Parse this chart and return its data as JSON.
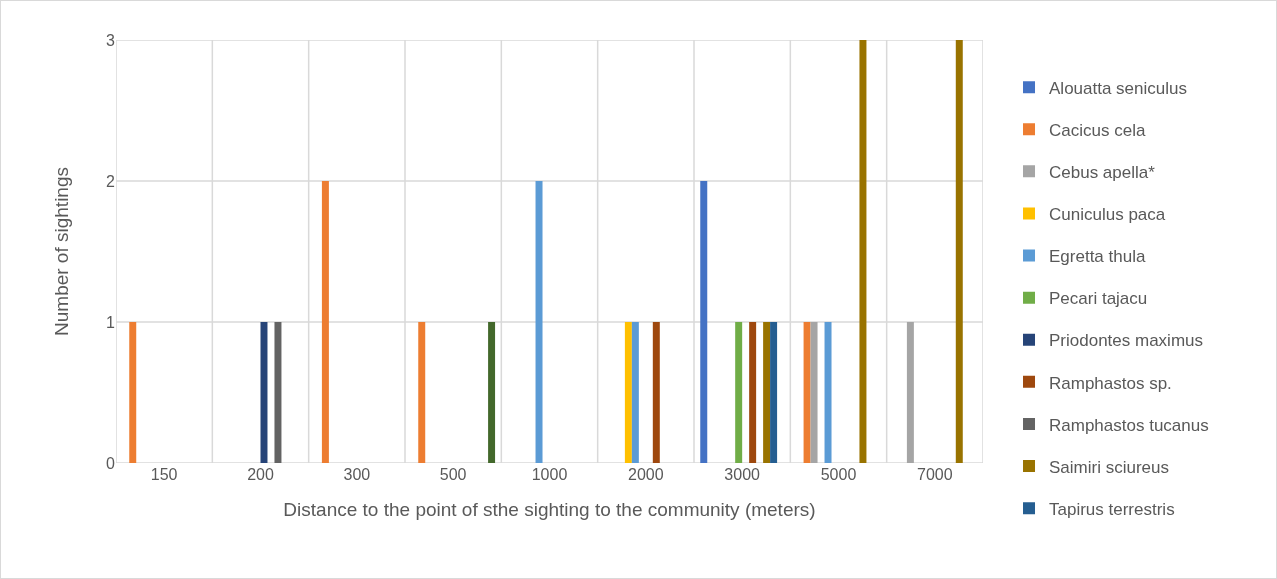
{
  "chart_data": {
    "type": "bar",
    "xlabel": "Distance to the point of sthe sighting to the community (meters)",
    "ylabel": "Number of sightings",
    "categories": [
      "150",
      "200",
      "300",
      "500",
      "1000",
      "2000",
      "3000",
      "5000",
      "7000"
    ],
    "series": [
      {
        "name": "Alouatta seniculus",
        "color": "#4472c4",
        "values": [
          null,
          null,
          null,
          null,
          null,
          null,
          2,
          null,
          null
        ]
      },
      {
        "name": "Cacicus cela",
        "color": "#ed7d31",
        "values": [
          1,
          null,
          2,
          1,
          null,
          null,
          null,
          1,
          null
        ]
      },
      {
        "name": "Cebus apella*",
        "color": "#a5a5a5",
        "values": [
          null,
          null,
          null,
          null,
          null,
          null,
          null,
          1,
          1
        ]
      },
      {
        "name": "Cuniculus paca",
        "color": "#ffc000",
        "values": [
          null,
          null,
          null,
          null,
          null,
          1,
          null,
          null,
          null
        ]
      },
      {
        "name": "Egretta thula",
        "color": "#5b9bd5",
        "values": [
          null,
          null,
          null,
          null,
          2,
          1,
          null,
          1,
          null
        ]
      },
      {
        "name": "Pecari tajacu",
        "color": "#70ad47",
        "values": [
          null,
          null,
          null,
          null,
          null,
          null,
          1,
          null,
          null
        ]
      },
      {
        "name": "Priodontes maximus",
        "color": "#264478",
        "values": [
          null,
          1,
          null,
          null,
          null,
          null,
          null,
          null,
          null
        ]
      },
      {
        "name": "Ramphastos sp.",
        "color": "#9e480e",
        "values": [
          null,
          null,
          null,
          null,
          null,
          1,
          1,
          null,
          null
        ]
      },
      {
        "name": "Ramphastos tucanus",
        "color": "#636363",
        "values": [
          null,
          1,
          null,
          null,
          null,
          null,
          null,
          null,
          null
        ]
      },
      {
        "name": "Saimiri sciureus",
        "color": "#997300",
        "values": [
          null,
          null,
          null,
          null,
          null,
          null,
          1,
          3,
          3
        ]
      },
      {
        "name": "Tapirus terrestris",
        "color": "#255e91",
        "values": [
          null,
          null,
          null,
          null,
          null,
          null,
          1,
          null,
          null
        ]
      },
      {
        "color": "#43682b",
        "values": [
          null,
          null,
          null,
          1,
          null,
          null,
          null,
          null,
          null
        ]
      }
    ],
    "ylim": [
      0,
      3
    ],
    "yticks": [
      0,
      1,
      2,
      3
    ],
    "grid": true,
    "legend": "right"
  }
}
